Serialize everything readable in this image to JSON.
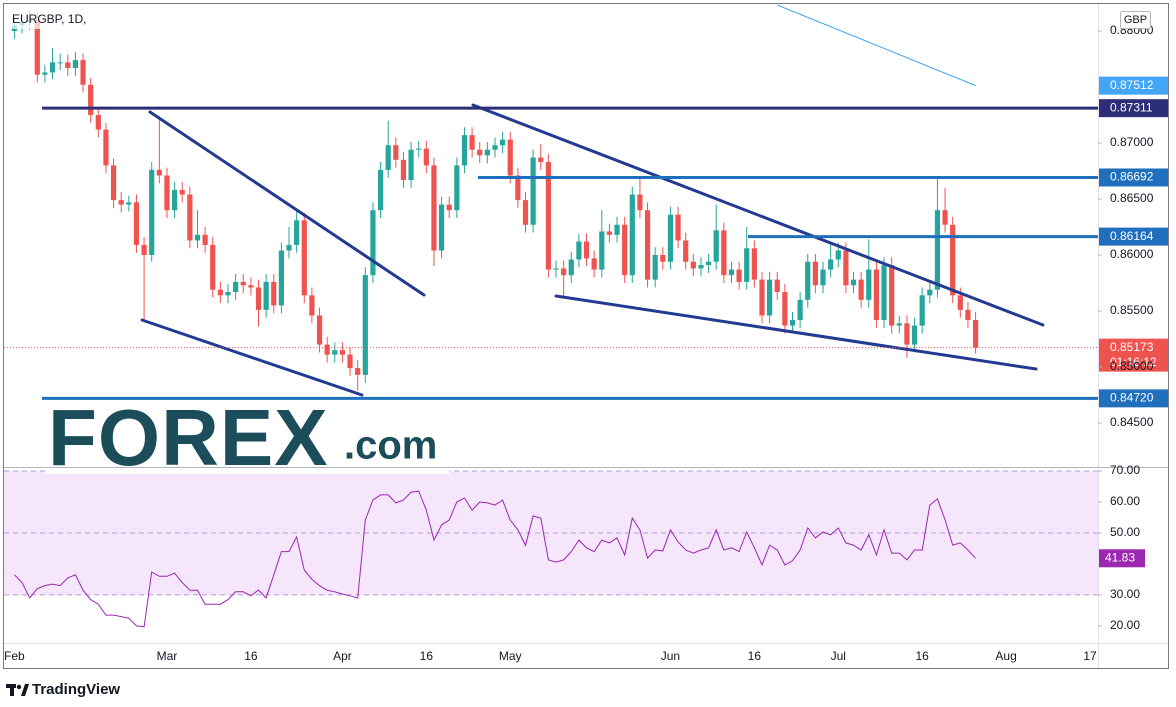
{
  "chart_data": {
    "type": "candlestick",
    "title": "EURGBP, 1D,",
    "currency": "GBP",
    "categories": [
      "Feb",
      null,
      null,
      null,
      null,
      null,
      null,
      null,
      null,
      null,
      null,
      null,
      null,
      null,
      null,
      null,
      null,
      null,
      null,
      null,
      "Mar",
      null,
      null,
      null,
      null,
      null,
      null,
      null,
      null,
      null,
      null,
      "16",
      null,
      null,
      null,
      null,
      null,
      null,
      null,
      null,
      null,
      null,
      null,
      "Apr",
      null,
      null,
      null,
      null,
      null,
      null,
      null,
      null,
      null,
      null,
      "16",
      null,
      null,
      null,
      null,
      null,
      null,
      null,
      null,
      null,
      null,
      "May",
      null,
      null,
      null,
      null,
      null,
      null,
      null,
      null,
      null,
      null,
      null,
      null,
      null,
      null,
      null,
      null,
      null,
      null,
      null,
      null,
      "Jun",
      null,
      null,
      null,
      null,
      null,
      null,
      null,
      null,
      null,
      null,
      "16",
      null,
      null,
      null,
      null,
      null,
      null,
      null,
      null,
      null,
      null,
      "Jul",
      null,
      null,
      null,
      null,
      null,
      null,
      null,
      null,
      null,
      null,
      "16",
      null,
      null,
      null,
      null,
      null,
      null,
      null,
      null,
      null,
      null,
      "Aug",
      null,
      null,
      null,
      null,
      null,
      null,
      null,
      null,
      null,
      null,
      "17"
    ],
    "open": [
      0.88,
      0.8805,
      0.8808,
      0.881,
      0.8761,
      0.8763,
      0.8772,
      0.8772,
      0.8767,
      0.8774,
      0.8752,
      0.8725,
      0.8712,
      0.868,
      0.8649,
      0.8645,
      0.8647,
      0.8609,
      0.86,
      0.8676,
      0.8671,
      0.864,
      0.8658,
      0.8654,
      0.8613,
      0.8618,
      0.8609,
      0.8569,
      0.8564,
      0.8567,
      0.8576,
      0.8573,
      0.8571,
      0.8551,
      0.8576,
      0.8555,
      0.8604,
      0.8609,
      0.8631,
      0.8564,
      0.8546,
      0.852,
      0.8511,
      0.8515,
      0.8511,
      0.8499,
      0.8493,
      0.8582,
      0.864,
      0.8676,
      0.8698,
      0.8685,
      0.8667,
      0.8694,
      0.8695,
      0.868,
      0.8604,
      0.8645,
      0.864,
      0.868,
      0.8707,
      0.8694,
      0.8689,
      0.8694,
      0.8698,
      0.8703,
      0.8671,
      0.8649,
      0.8627,
      0.8687,
      0.8683,
      0.8587,
      0.8588,
      0.8582,
      0.8596,
      0.8612,
      0.8597,
      0.8587,
      0.8621,
      0.8618,
      0.8627,
      0.8582,
      0.8654,
      0.864,
      0.8578,
      0.86,
      0.8594,
      0.8636,
      0.8613,
      0.8594,
      0.8588,
      0.8591,
      0.8594,
      0.8622,
      0.8582,
      0.8587,
      0.8576,
      0.8606,
      0.8578,
      0.8546,
      0.8578,
      0.8567,
      0.8537,
      0.8542,
      0.856,
      0.8594,
      0.8573,
      0.8587,
      0.8596,
      0.8604,
      0.8573,
      0.8578,
      0.856,
      0.8587,
      0.8542,
      0.8591,
      0.8537,
      0.8539,
      0.852,
      0.8537,
      0.8564,
      0.8569,
      0.864,
      0.8627,
      0.8564,
      0.8551,
      0.8542,
      null,
      null,
      null,
      null,
      null,
      null,
      null,
      null,
      null,
      null,
      null,
      null,
      null,
      null,
      null
    ],
    "high": [
      0.8812,
      0.8815,
      0.8818,
      0.8817,
      0.877,
      0.8785,
      0.878,
      0.8779,
      0.8781,
      0.878,
      0.8758,
      0.8731,
      0.8718,
      0.8686,
      0.8656,
      0.8653,
      0.8654,
      0.8616,
      0.8683,
      0.8724,
      0.8678,
      0.8665,
      0.8665,
      0.8661,
      0.864,
      0.8625,
      0.8616,
      0.8576,
      0.8574,
      0.8583,
      0.8583,
      0.858,
      0.8578,
      0.8583,
      0.8583,
      0.8611,
      0.8625,
      0.864,
      0.8638,
      0.8571,
      0.8553,
      0.8527,
      0.8522,
      0.8522,
      0.8518,
      0.8506,
      0.8589,
      0.8647,
      0.8683,
      0.872,
      0.8705,
      0.8692,
      0.8701,
      0.8702,
      0.8702,
      0.8687,
      0.8652,
      0.8652,
      0.8687,
      0.8714,
      0.8714,
      0.8701,
      0.8701,
      0.8705,
      0.871,
      0.871,
      0.8678,
      0.8656,
      0.8694,
      0.8699,
      0.869,
      0.8595,
      0.8595,
      0.8603,
      0.8619,
      0.8619,
      0.8604,
      0.864,
      0.8628,
      0.8634,
      0.8634,
      0.8661,
      0.8669,
      0.8647,
      0.8607,
      0.8607,
      0.8643,
      0.8643,
      0.862,
      0.8601,
      0.8598,
      0.8601,
      0.8645,
      0.8629,
      0.8594,
      0.8594,
      0.8625,
      0.8613,
      0.8585,
      0.8585,
      0.8585,
      0.8574,
      0.8549,
      0.8567,
      0.8601,
      0.8601,
      0.8594,
      0.861,
      0.8611,
      0.8611,
      0.8585,
      0.8585,
      0.8614,
      0.8594,
      0.8598,
      0.8598,
      0.8546,
      0.8546,
      0.8544,
      0.8571,
      0.8576,
      0.8669,
      0.866,
      0.8634,
      0.8571,
      0.8558,
      0.8549,
      null,
      null,
      null,
      null,
      null,
      null,
      null,
      null,
      null,
      null,
      null,
      null,
      null,
      null,
      null
    ],
    "low": [
      0.8793,
      0.8798,
      0.8801,
      0.8754,
      0.8754,
      0.8757,
      0.8765,
      0.876,
      0.876,
      0.8745,
      0.8718,
      0.8705,
      0.8673,
      0.8642,
      0.8638,
      0.8639,
      0.8602,
      0.8541,
      0.8594,
      0.8664,
      0.8633,
      0.8633,
      0.8647,
      0.8606,
      0.8606,
      0.8602,
      0.8562,
      0.8557,
      0.8557,
      0.856,
      0.8566,
      0.8564,
      0.8536,
      0.8544,
      0.8548,
      0.8548,
      0.8597,
      0.8602,
      0.8557,
      0.8539,
      0.8513,
      0.8504,
      0.8504,
      0.8504,
      0.8492,
      0.8479,
      0.8486,
      0.8575,
      0.8633,
      0.8669,
      0.8678,
      0.866,
      0.866,
      0.8687,
      0.8673,
      0.859,
      0.8597,
      0.8633,
      0.8633,
      0.8673,
      0.8687,
      0.8682,
      0.8682,
      0.8687,
      0.8691,
      0.8664,
      0.8642,
      0.862,
      0.862,
      0.8676,
      0.858,
      0.858,
      0.8562,
      0.8575,
      0.8589,
      0.859,
      0.858,
      0.858,
      0.8611,
      0.8611,
      0.8575,
      0.8575,
      0.8633,
      0.8571,
      0.8571,
      0.8587,
      0.8587,
      0.8606,
      0.8587,
      0.8581,
      0.8581,
      0.8584,
      0.8587,
      0.8575,
      0.8575,
      0.8569,
      0.8569,
      0.8571,
      0.8539,
      0.8539,
      0.856,
      0.853,
      0.853,
      0.8535,
      0.8553,
      0.8566,
      0.8566,
      0.858,
      0.8589,
      0.8566,
      0.8566,
      0.8553,
      0.8553,
      0.8535,
      0.8535,
      0.853,
      0.853,
      0.8508,
      0.8513,
      0.853,
      0.8557,
      0.8562,
      0.862,
      0.8557,
      0.8544,
      0.8535,
      0.8512,
      null,
      null,
      null,
      null,
      null,
      null,
      null,
      null,
      null,
      null,
      null,
      null,
      null,
      null,
      null
    ],
    "close": [
      0.8805,
      0.8808,
      0.881,
      0.8761,
      0.8763,
      0.8772,
      0.8772,
      0.8767,
      0.8774,
      0.8752,
      0.8725,
      0.8712,
      0.868,
      0.8649,
      0.8645,
      0.8647,
      0.8609,
      0.86,
      0.8676,
      0.8671,
      0.864,
      0.8658,
      0.8654,
      0.8613,
      0.8618,
      0.8609,
      0.8569,
      0.8564,
      0.8567,
      0.8576,
      0.8573,
      0.8571,
      0.8551,
      0.8576,
      0.8555,
      0.8604,
      0.8609,
      0.8631,
      0.8564,
      0.8546,
      0.852,
      0.8511,
      0.8515,
      0.8511,
      0.8499,
      0.8493,
      0.8582,
      0.864,
      0.8676,
      0.8698,
      0.8685,
      0.8667,
      0.8694,
      0.8695,
      0.868,
      0.8604,
      0.8645,
      0.864,
      0.868,
      0.8707,
      0.8694,
      0.8689,
      0.8694,
      0.8698,
      0.8703,
      0.8671,
      0.8649,
      0.8627,
      0.8687,
      0.8683,
      0.8587,
      0.8588,
      0.8582,
      0.8596,
      0.8612,
      0.8597,
      0.8587,
      0.8621,
      0.8618,
      0.8627,
      0.8582,
      0.8654,
      0.864,
      0.8578,
      0.86,
      0.8594,
      0.8636,
      0.8613,
      0.8594,
      0.8588,
      0.8591,
      0.8594,
      0.8622,
      0.8582,
      0.8587,
      0.8576,
      0.8606,
      0.8578,
      0.8546,
      0.8578,
      0.8567,
      0.8537,
      0.8542,
      0.856,
      0.8594,
      0.8573,
      0.8587,
      0.8596,
      0.8604,
      0.8573,
      0.8578,
      0.856,
      0.8587,
      0.8542,
      0.8591,
      0.8537,
      0.8539,
      0.852,
      0.8537,
      0.8564,
      0.8569,
      0.864,
      0.8627,
      0.8564,
      0.8551,
      0.8542,
      0.85173,
      null,
      null,
      null,
      null,
      null,
      null,
      null,
      null,
      null,
      null,
      null,
      null,
      null,
      null,
      null
    ],
    "up_color": "#26a69a",
    "down_color": "#ef5350",
    "countdown": "01:16:12",
    "ylim": [
      0.84125,
      0.88232
    ],
    "yticks": [
      {
        "value": 0.845,
        "label": "0.84500"
      },
      {
        "value": 0.85,
        "label": "0.85000"
      },
      {
        "value": 0.855,
        "label": "0.85500"
      },
      {
        "value": 0.86,
        "label": "0.86000"
      },
      {
        "value": 0.865,
        "label": "0.86500"
      },
      {
        "value": 0.87,
        "label": "0.87000"
      },
      {
        "value": 0.88,
        "label": "0.88000"
      }
    ],
    "levels": [
      {
        "value": 0.87311,
        "color": "#2c2f78"
      },
      {
        "value": 0.86692,
        "color": "#1f6fbd"
      },
      {
        "value": 0.86164,
        "color": "#1f6fbd"
      },
      {
        "value": 0.8472,
        "label": "0.84720",
        "color": "#1f6fbd"
      }
    ],
    "ma": {
      "value": 0.87512,
      "color": "#42a5f5"
    },
    "rsi": {
      "color": "#9c27b0",
      "band": [
        30,
        70
      ],
      "band_color": "#f5e6fc",
      "ylim": [
        14.8,
        71.3
      ],
      "yticks": [
        {
          "value": 70,
          "label": "70.00"
        },
        {
          "value": 60,
          "label": "60.00"
        },
        {
          "value": 50,
          "label": "50.00"
        },
        {
          "value": 30,
          "label": "30.00"
        },
        {
          "value": 20,
          "label": "20.00"
        }
      ],
      "values": [
        36.5,
        34,
        29,
        32,
        33,
        33.5,
        33,
        35.5,
        36.5,
        31.5,
        28.5,
        27,
        23.5,
        23.5,
        23,
        22.5,
        20,
        19.7,
        37.4,
        36,
        36,
        37,
        34,
        31.5,
        31.5,
        27,
        27,
        27,
        28.5,
        31,
        31,
        29.7,
        31.6,
        29,
        36.5,
        44,
        44,
        48.7,
        38,
        35,
        33,
        31.5,
        31,
        30.3,
        29.7,
        29,
        54.2,
        60.6,
        62.3,
        62.3,
        59.7,
        60.6,
        63.2,
        63.5,
        57.4,
        47.7,
        52.6,
        54.2,
        60,
        61.3,
        57.4,
        60,
        59.7,
        59,
        60.6,
        54.2,
        51,
        46,
        55.5,
        54.8,
        41.3,
        40.6,
        41.3,
        44,
        47.7,
        45.2,
        44,
        47.7,
        46.8,
        48.4,
        42.9,
        54.8,
        51,
        41.9,
        44.5,
        44.2,
        51,
        47.1,
        44.5,
        43.5,
        44.5,
        45.2,
        51,
        44.5,
        45.2,
        44,
        50.3,
        45.2,
        39.7,
        46.1,
        44.5,
        39.7,
        41,
        44.5,
        51.6,
        48.4,
        50.3,
        49.4,
        51.6,
        46.8,
        46.1,
        44.5,
        49.4,
        42.9,
        51,
        43.5,
        43.5,
        41.3,
        44.5,
        44.5,
        59,
        61,
        54.2,
        46.1,
        46.8,
        44.5,
        41.83,
        null,
        null,
        null,
        null,
        null,
        null,
        null,
        null,
        null,
        null,
        null,
        null,
        null,
        null,
        null
      ]
    }
  },
  "logo": {
    "brand": "FOREX",
    "suffix": ".com"
  },
  "footer": "TradingView"
}
